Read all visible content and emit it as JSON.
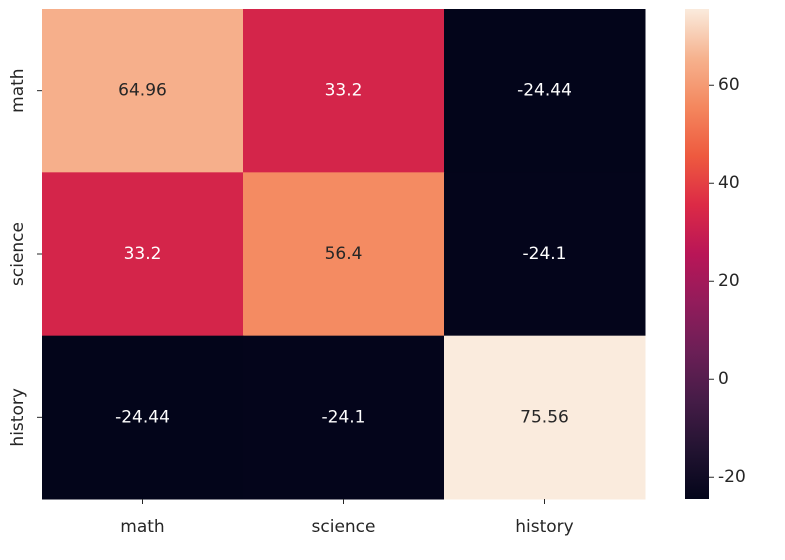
{
  "chart_data": {
    "type": "heatmap",
    "x_categories": [
      "math",
      "science",
      "history"
    ],
    "y_categories": [
      "math",
      "science",
      "history"
    ],
    "values": [
      [
        64.96,
        33.2,
        -24.44
      ],
      [
        33.2,
        56.4,
        -24.1
      ],
      [
        -24.44,
        -24.1,
        75.56
      ]
    ],
    "zlim": [
      -24.44,
      75.56
    ],
    "zticks": [
      -20,
      0,
      20,
      40,
      60
    ],
    "colormap": [
      "#03051A",
      "#221331",
      "#451C47",
      "#6B1F56",
      "#921C5B",
      "#B91657",
      "#DC2A46",
      "#EE5A3F",
      "#F4875E",
      "#F6B28E",
      "#FAEBDD"
    ]
  }
}
